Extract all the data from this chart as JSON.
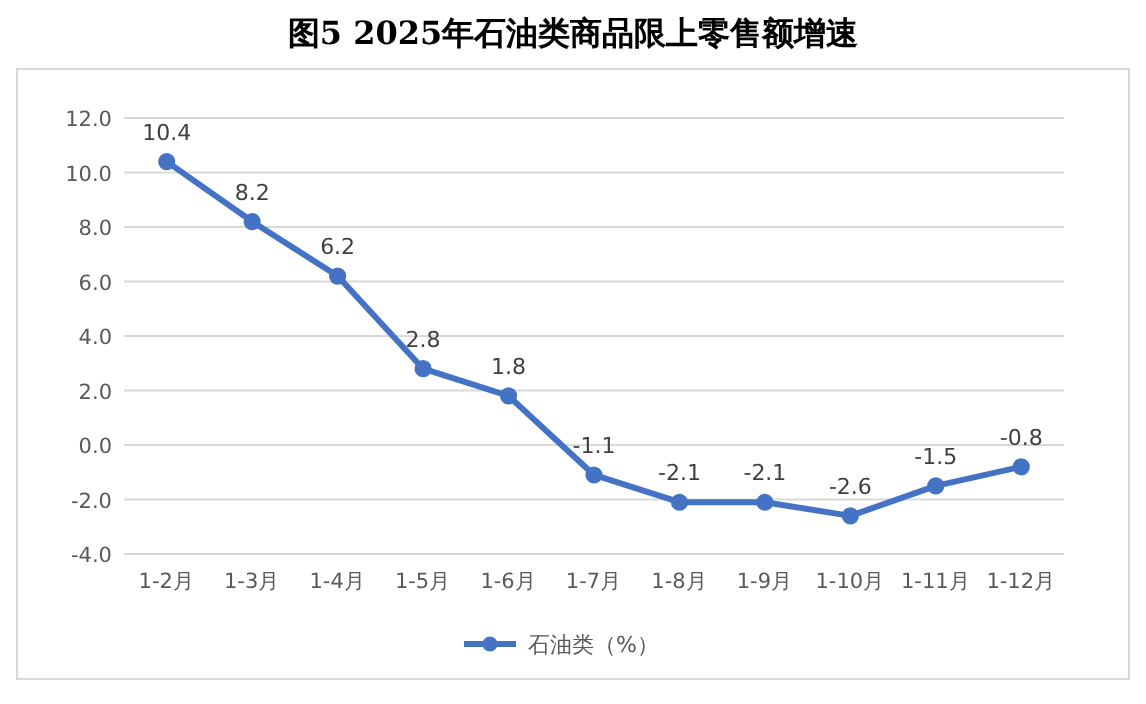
{
  "chart_data": {
    "type": "line",
    "title": "图5 2025年石油类商品限上零售额增速",
    "categories": [
      "1-2月",
      "1-3月",
      "1-4月",
      "1-5月",
      "1-6月",
      "1-7月",
      "1-8月",
      "1-9月",
      "1-10月",
      "1-11月",
      "1-12月"
    ],
    "series": [
      {
        "name": "石油类（%）",
        "color": "#4472c4",
        "values": [
          10.4,
          8.2,
          6.2,
          2.8,
          1.8,
          -1.1,
          -2.1,
          -2.1,
          -2.6,
          -1.5,
          -0.8
        ]
      }
    ],
    "ylim": [
      -4,
      12
    ],
    "yticks": [
      {
        "value": -4,
        "label": "-4.0"
      },
      {
        "value": -2,
        "label": "-2.0"
      },
      {
        "value": 0,
        "label": "0.0"
      },
      {
        "value": 2,
        "label": "2.0"
      },
      {
        "value": 4,
        "label": "4.0"
      },
      {
        "value": 6,
        "label": "6.0"
      },
      {
        "value": 8,
        "label": "8.0"
      },
      {
        "value": 10,
        "label": "10.0"
      },
      {
        "value": 12,
        "label": "12.0"
      }
    ],
    "grid": "y",
    "legend": "bottom",
    "marker": "circle",
    "line_style": "solid",
    "data_labels": true
  }
}
